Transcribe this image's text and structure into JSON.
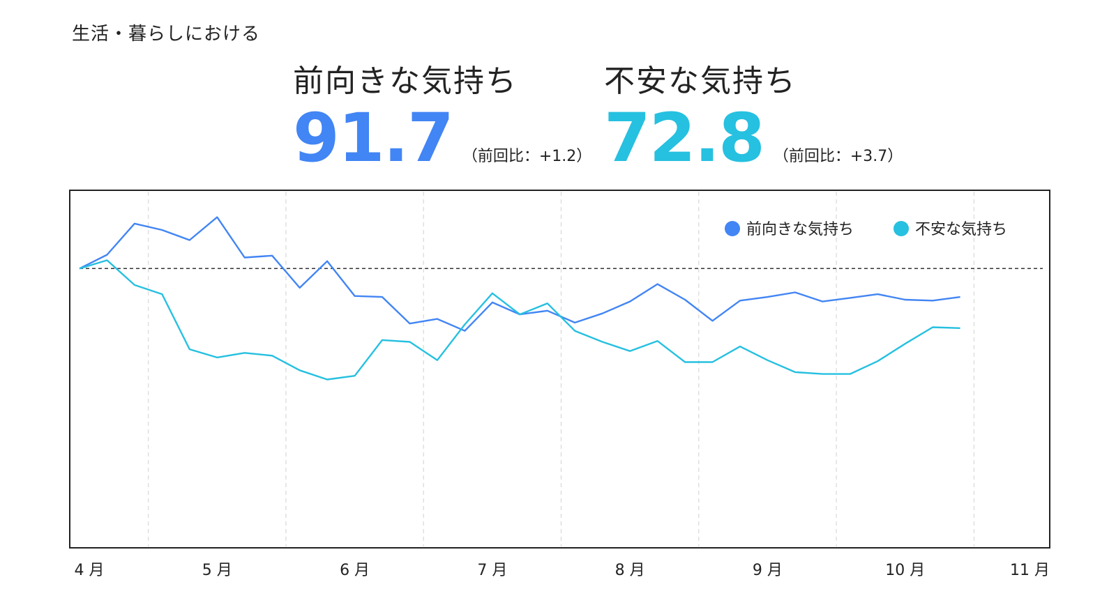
{
  "category_label": "生活・暮らしにおける",
  "metrics": [
    {
      "title": "前向きな気持ち",
      "value": "91.7",
      "compare": "（前回比：+1.2）",
      "color": "#4285f4"
    },
    {
      "title": "不安な気持ち",
      "value": "72.8",
      "compare": "（前回比：+3.7）",
      "color": "#26c0e0"
    }
  ],
  "chart_data": {
    "type": "line",
    "x_ticks": [
      "4 月",
      "5 月",
      "6 月",
      "7 月",
      "8 月",
      "9 月",
      "10 月",
      "11 月"
    ],
    "reference_line": 100,
    "ylim": [
      70,
      108
    ],
    "grid": "vertical dashed",
    "legend_position": "top-right",
    "series": [
      {
        "name": "前向きな気持ち",
        "color": "#4285f4",
        "x": [
          4.0,
          4.2,
          4.4,
          4.6,
          4.8,
          5.0,
          5.2,
          5.4,
          5.6,
          5.8,
          6.0,
          6.2,
          6.4,
          6.6,
          6.8,
          7.0,
          7.2,
          7.4,
          7.6,
          7.8,
          8.0,
          8.2,
          8.4,
          8.6,
          8.8,
          9.0,
          9.2,
          9.4,
          9.6,
          9.8,
          10.0,
          10.2,
          10.4,
          10.6,
          10.8,
          11.0
        ],
        "values": [
          100,
          101.5,
          104.9,
          104.2,
          103.1,
          105.6,
          101.2,
          101.4,
          97.9,
          100.8,
          97.0,
          96.9,
          94.0,
          94.5,
          93.2,
          96.3,
          95.0,
          95.4,
          94.1,
          95.1,
          96.4,
          98.3,
          96.6,
          94.3,
          96.5,
          96.9,
          97.4,
          96.4,
          96.8,
          97.2,
          96.6,
          96.5,
          96.9,
          null,
          null,
          null
        ]
      },
      {
        "name": "不安な気持ち",
        "color": "#26c0e0",
        "x": [
          4.0,
          4.2,
          4.4,
          4.6,
          4.8,
          5.0,
          5.2,
          5.4,
          5.6,
          5.8,
          6.0,
          6.2,
          6.4,
          6.6,
          6.8,
          7.0,
          7.2,
          7.4,
          7.6,
          7.8,
          8.0,
          8.2,
          8.4,
          8.6,
          8.8,
          9.0,
          9.2,
          9.4,
          9.6,
          9.8,
          10.0,
          10.2,
          10.4,
          10.6,
          10.8,
          11.0
        ],
        "values": [
          100,
          100.9,
          98.2,
          97.2,
          91.2,
          90.3,
          90.8,
          90.5,
          88.9,
          87.9,
          88.3,
          92.2,
          92.0,
          90.0,
          93.9,
          97.3,
          95.0,
          96.2,
          93.2,
          92.0,
          91.0,
          92.1,
          89.8,
          89.8,
          91.5,
          90.0,
          88.7,
          88.5,
          88.5,
          89.9,
          91.8,
          93.6,
          93.5,
          null,
          null,
          null
        ]
      }
    ]
  }
}
